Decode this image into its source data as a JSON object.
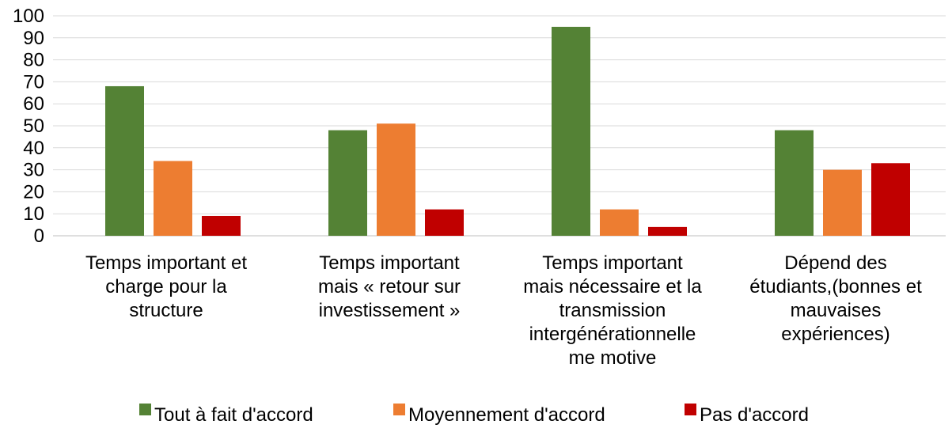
{
  "chart_data": {
    "type": "bar",
    "title": "",
    "xlabel": "",
    "ylabel": "",
    "ylim": [
      0,
      100
    ],
    "yticks": [
      0,
      10,
      20,
      30,
      40,
      50,
      60,
      70,
      80,
      90,
      100
    ],
    "grid": true,
    "legend_position": "bottom",
    "categories": [
      [
        "Temps important  et",
        "charge pour la",
        "structure"
      ],
      [
        "Temps important",
        "mais « retour sur",
        "investissement »"
      ],
      [
        "Temps important",
        "mais nécessaire et la",
        "transmission",
        "intergénérationnelle",
        "me motive"
      ],
      [
        "Dépend des",
        "étudiants,(bonnes et",
        "mauvaises",
        "expériences)"
      ]
    ],
    "series": [
      {
        "name": "Tout à fait d'accord",
        "color": "#548235",
        "values": [
          68,
          48,
          95,
          48
        ]
      },
      {
        "name": "Moyennement d'accord",
        "color": "#ED7D31",
        "values": [
          34,
          51,
          12,
          30
        ]
      },
      {
        "name": "Pas d'accord",
        "color": "#C00000",
        "values": [
          9,
          12,
          4,
          33
        ]
      }
    ]
  }
}
